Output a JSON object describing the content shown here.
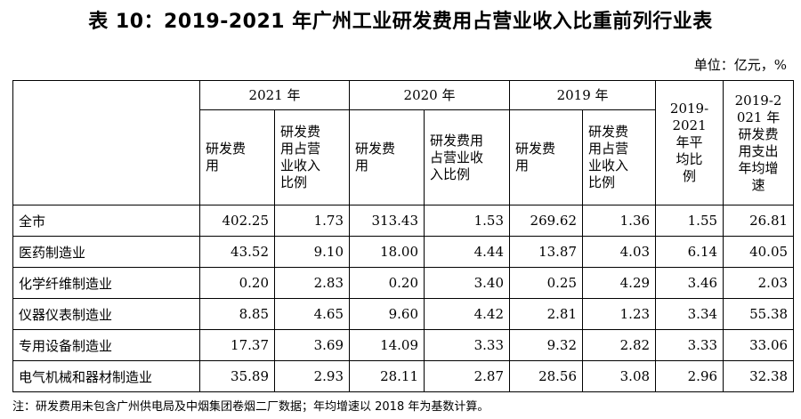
{
  "title": "表 10：2019-2021 年广州工业研发费用占营业收入比重前列行业表",
  "unit": "单位：亿元，%",
  "header": {
    "year_2021": "2021 年",
    "year_2020": "2020 年",
    "year_2019": "2019 年",
    "avg_ratio_lines": [
      "2019-",
      "2021",
      "年平",
      "均比",
      "例"
    ],
    "avg_growth_lines": [
      "2019-2",
      "021 年",
      "研发费",
      "用支出",
      "年均增",
      "速"
    ],
    "rd_cost_lines_2021": [
      "研发费",
      "用"
    ],
    "rd_ratio_lines_2021": [
      "研发费",
      "用占营",
      "业收入",
      "比例"
    ],
    "rd_cost_lines_2020": [
      "研发费",
      "用"
    ],
    "rd_ratio_lines_2020": [
      "研发费用",
      "占营业收",
      "入比例"
    ],
    "rd_cost_lines_2019": [
      "研发费",
      "用"
    ],
    "rd_ratio_lines_2019": [
      "研发费",
      "用占营",
      "业收入",
      "比例"
    ]
  },
  "rows": [
    {
      "name": "全市",
      "v": [
        "402.25",
        "1.73",
        "313.43",
        "1.53",
        "269.62",
        "1.36",
        "1.55",
        "26.81"
      ]
    },
    {
      "name": "医药制造业",
      "v": [
        "43.52",
        "9.10",
        "18.00",
        "4.44",
        "13.87",
        "4.03",
        "6.14",
        "40.05"
      ]
    },
    {
      "name": "化学纤维制造业",
      "v": [
        "0.20",
        "2.83",
        "0.20",
        "3.40",
        "0.25",
        "4.29",
        "3.46",
        "2.03"
      ]
    },
    {
      "name": "仪器仪表制造业",
      "v": [
        "8.85",
        "4.65",
        "9.60",
        "4.42",
        "2.81",
        "1.23",
        "3.34",
        "55.38"
      ]
    },
    {
      "name": "专用设备制造业",
      "v": [
        "17.37",
        "3.69",
        "14.09",
        "3.33",
        "9.32",
        "2.82",
        "3.33",
        "33.06"
      ]
    },
    {
      "name": "电气机械和器材制造业",
      "v": [
        "35.89",
        "2.93",
        "28.11",
        "2.87",
        "28.56",
        "3.08",
        "2.96",
        "32.38"
      ]
    }
  ],
  "note": "注：研发费用未包含广州供电局及中烟集团卷烟二厂数据；年均增速以 2018 年为基数计算。"
}
